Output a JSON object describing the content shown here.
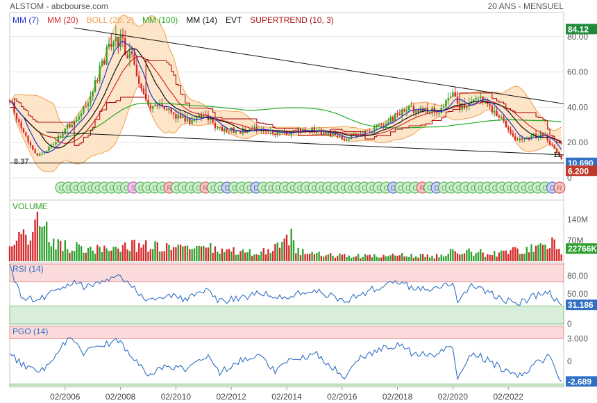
{
  "header": {
    "left": "ALSTOM - abcbourse.com",
    "right": "20 ANS - MENSUEL"
  },
  "colors": {
    "up": "#2ca02c",
    "down": "#d62728",
    "mm7": "#2233cc",
    "mm20": "#d62728",
    "boll": "#f0a050",
    "boll_fill": "#fbe0c0",
    "mm100": "#22aa22",
    "mm14": "#111111",
    "supertrend": "#aa1111",
    "osc_line": "#2f6fc4",
    "zone_high": "#fadada",
    "zone_low": "#d8eed8",
    "last_price_bg": "#2f6fc4",
    "max_bg": "#1f8a3a",
    "supertrend_bg": "#c0392b"
  },
  "chart_data": [
    {
      "type": "candlestick",
      "panel": "price",
      "legend": [
        {
          "label": "MM (7)",
          "color": "#2233cc"
        },
        {
          "label": "MM (20)",
          "color": "#d62728"
        },
        {
          "label": "BOLL (20, 2)",
          "color": "#f0a050"
        },
        {
          "label": "MM (100)",
          "color": "#22aa22"
        },
        {
          "label": "MM (14)",
          "color": "#111111"
        },
        {
          "label": "EVT",
          "color": "#111111"
        },
        {
          "label": "SUPERTREND (10, 3)",
          "color": "#aa1111"
        }
      ],
      "y_ticks": [
        0,
        20,
        40,
        60,
        80
      ],
      "ylim": [
        0,
        87
      ],
      "x_ticks": [
        "02/2006",
        "02/2008",
        "02/2010",
        "02/2012",
        "02/2014",
        "02/2016",
        "02/2018",
        "02/2020",
        "02/2022"
      ],
      "x_range": [
        "02/2004",
        "02/2024"
      ],
      "labels": {
        "max": "84.12",
        "last": "10.690",
        "supertrend": "6.200",
        "min_note": "8.37",
        "last_note": "11"
      },
      "anchors": [
        [
          "2004-02",
          44
        ],
        [
          "2004-08",
          25
        ],
        [
          "2005-02",
          12
        ],
        [
          "2005-08",
          18
        ],
        [
          "2006-02",
          28
        ],
        [
          "2006-08",
          35
        ],
        [
          "2007-02",
          50
        ],
        [
          "2007-08",
          70
        ],
        [
          "2007-12",
          80
        ],
        [
          "2008-06",
          70
        ],
        [
          "2009-02",
          42
        ],
        [
          "2009-08",
          40
        ],
        [
          "2010-02",
          35
        ],
        [
          "2010-08",
          32
        ],
        [
          "2011-02",
          36
        ],
        [
          "2011-08",
          28
        ],
        [
          "2012-02",
          27
        ],
        [
          "2012-08",
          26
        ],
        [
          "2013-02",
          28
        ],
        [
          "2013-08",
          26
        ],
        [
          "2014-02",
          25
        ],
        [
          "2014-08",
          27
        ],
        [
          "2015-02",
          27
        ],
        [
          "2015-08",
          25
        ],
        [
          "2016-02",
          22
        ],
        [
          "2016-08",
          24
        ],
        [
          "2017-02",
          27
        ],
        [
          "2017-08",
          31
        ],
        [
          "2018-02",
          36
        ],
        [
          "2018-08",
          39
        ],
        [
          "2019-02",
          38
        ],
        [
          "2019-08",
          39
        ],
        [
          "2020-02",
          48
        ],
        [
          "2020-05",
          40
        ],
        [
          "2020-11",
          46
        ],
        [
          "2021-05",
          42
        ],
        [
          "2021-11",
          34
        ],
        [
          "2022-05",
          22
        ],
        [
          "2022-11",
          23
        ],
        [
          "2023-05",
          25
        ],
        [
          "2023-09",
          18
        ],
        [
          "2024-01",
          10.69
        ]
      ],
      "trendlines": [
        {
          "from": [
            "2006-06",
            85
          ],
          "to": [
            "2024-02",
            42
          ]
        },
        {
          "from": [
            "2005-06",
            26
          ],
          "to": [
            "2024-02",
            13
          ]
        },
        {
          "from": [
            "2004-02",
            8.4
          ],
          "to": [
            "2024-02",
            8.4
          ]
        }
      ],
      "signal_letters": [
        "C",
        "C",
        "C",
        "C",
        "C",
        "C",
        "C",
        "C",
        "C",
        "C",
        "S",
        "C",
        "C",
        "C",
        "C",
        "R",
        "C",
        "C",
        "C",
        "C",
        "R",
        "C",
        "C",
        "D",
        "C",
        "C",
        "C",
        "D",
        "C",
        "C",
        "C",
        "C",
        "C",
        "C",
        "C",
        "C",
        "C",
        "C",
        "C",
        "C",
        "C",
        "C",
        "C",
        "C",
        "C",
        "C",
        "D",
        "C",
        "C",
        "C",
        "R",
        "C",
        "D",
        "C",
        "C",
        "C",
        "C",
        "C",
        "C",
        "C",
        "C",
        "C",
        "C",
        "C",
        "C",
        "C",
        "C",
        "C",
        "D",
        "R"
      ]
    },
    {
      "type": "bar",
      "panel": "volume",
      "title": "VOLUME",
      "y_ticks": [
        {
          "v": 70,
          "label": "70M"
        },
        {
          "v": 140,
          "label": "140M"
        }
      ],
      "ylim": [
        0,
        165
      ],
      "unit": "M",
      "last_label": "22766K",
      "anchors": [
        [
          "2004-02",
          60
        ],
        [
          "2004-09",
          80
        ],
        [
          "2005-03",
          140
        ],
        [
          "2005-09",
          55
        ],
        [
          "2006-06",
          45
        ],
        [
          "2007-06",
          40
        ],
        [
          "2008-06",
          55
        ],
        [
          "2009-02",
          50
        ],
        [
          "2010-06",
          40
        ],
        [
          "2011-06",
          42
        ],
        [
          "2012-06",
          30
        ],
        [
          "2013-06",
          33
        ],
        [
          "2014-04",
          90
        ],
        [
          "2014-06",
          35
        ],
        [
          "2015-06",
          20
        ],
        [
          "2016-06",
          18
        ],
        [
          "2017-06",
          16
        ],
        [
          "2018-06",
          20
        ],
        [
          "2019-06",
          16
        ],
        [
          "2020-04",
          40
        ],
        [
          "2021-06",
          24
        ],
        [
          "2022-06",
          38
        ],
        [
          "2023-06",
          45
        ],
        [
          "2023-12",
          75
        ],
        [
          "2024-01",
          22.8
        ]
      ]
    },
    {
      "type": "line",
      "panel": "rsi",
      "title": "RSI (14)",
      "y_ticks": [
        0,
        50,
        80
      ],
      "ylim": [
        0,
        100
      ],
      "zones": {
        "high": [
          70,
          100
        ],
        "low": [
          0,
          30
        ]
      },
      "last_label": "31.186",
      "anchors": [
        [
          "2004-02",
          95
        ],
        [
          "2004-07",
          45
        ],
        [
          "2005-02",
          40
        ],
        [
          "2005-10",
          55
        ],
        [
          "2006-05",
          70
        ],
        [
          "2006-11",
          60
        ],
        [
          "2007-06",
          75
        ],
        [
          "2008-01",
          82
        ],
        [
          "2008-06",
          65
        ],
        [
          "2009-02",
          40
        ],
        [
          "2009-10",
          48
        ],
        [
          "2010-06",
          42
        ],
        [
          "2011-03",
          55
        ],
        [
          "2011-09",
          38
        ],
        [
          "2012-06",
          44
        ],
        [
          "2013-03",
          52
        ],
        [
          "2013-09",
          42
        ],
        [
          "2014-06",
          50
        ],
        [
          "2015-03",
          55
        ],
        [
          "2015-10",
          45
        ],
        [
          "2016-04",
          38
        ],
        [
          "2016-10",
          50
        ],
        [
          "2017-06",
          62
        ],
        [
          "2018-02",
          68
        ],
        [
          "2018-09",
          60
        ],
        [
          "2019-06",
          58
        ],
        [
          "2020-02",
          70
        ],
        [
          "2020-04",
          36
        ],
        [
          "2020-10",
          62
        ],
        [
          "2021-06",
          52
        ],
        [
          "2022-02",
          38
        ],
        [
          "2022-08",
          36
        ],
        [
          "2023-02",
          48
        ],
        [
          "2023-08",
          52
        ],
        [
          "2024-01",
          31.2
        ]
      ]
    },
    {
      "type": "line",
      "panel": "pgo",
      "title": "PGO (14)",
      "y_ticks": [
        0,
        3
      ],
      "y_tick_labels": [
        "0",
        "3.000"
      ],
      "ylim": [
        -3.2,
        4.6
      ],
      "zones": {
        "high": [
          3,
          4.6
        ],
        "low": [
          -3.2,
          -3
        ]
      },
      "last_label": "-2.689",
      "anchors": [
        [
          "2004-02",
          1.0
        ],
        [
          "2004-09",
          -0.8
        ],
        [
          "2005-04",
          -1.2
        ],
        [
          "2005-10",
          0.5
        ],
        [
          "2006-04",
          3.6
        ],
        [
          "2006-10",
          1.0
        ],
        [
          "2007-05",
          2.0
        ],
        [
          "2008-01",
          2.8
        ],
        [
          "2008-08",
          0.5
        ],
        [
          "2009-02",
          -1.8
        ],
        [
          "2009-09",
          -0.5
        ],
        [
          "2010-06",
          -1.0
        ],
        [
          "2011-03",
          0.8
        ],
        [
          "2011-09",
          -1.5
        ],
        [
          "2012-06",
          0.2
        ],
        [
          "2013-03",
          0.8
        ],
        [
          "2013-09",
          -1.2
        ],
        [
          "2014-06",
          0.5
        ],
        [
          "2015-03",
          1.0
        ],
        [
          "2015-09",
          -0.5
        ],
        [
          "2016-03",
          -2.0
        ],
        [
          "2016-10",
          0.5
        ],
        [
          "2017-06",
          1.5
        ],
        [
          "2018-02",
          2.2
        ],
        [
          "2018-09",
          1.0
        ],
        [
          "2019-06",
          0.8
        ],
        [
          "2020-02",
          2.0
        ],
        [
          "2020-04",
          -2.2
        ],
        [
          "2020-10",
          1.2
        ],
        [
          "2021-06",
          0.0
        ],
        [
          "2022-02",
          -1.5
        ],
        [
          "2022-08",
          -2.0
        ],
        [
          "2023-02",
          -0.3
        ],
        [
          "2023-08",
          0.8
        ],
        [
          "2024-01",
          -2.689
        ]
      ]
    }
  ]
}
